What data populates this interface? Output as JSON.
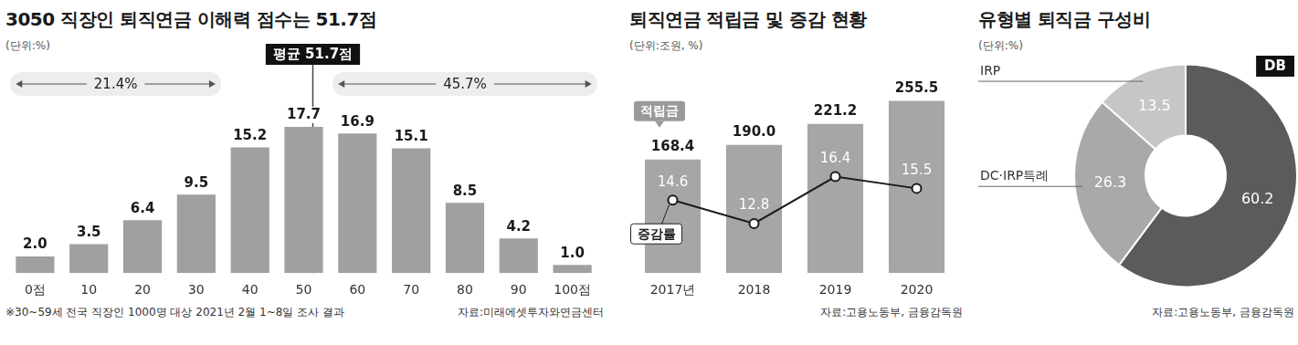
{
  "chart_data": [
    {
      "type": "bar",
      "title": "3050 직장인 퇴직연금 이해력 점수는 51.7점",
      "subtitle": "(단위:%)",
      "categories": [
        "0점",
        "10",
        "20",
        "30",
        "40",
        "50",
        "60",
        "70",
        "80",
        "90",
        "100점"
      ],
      "values": [
        2.0,
        3.5,
        6.4,
        9.5,
        15.2,
        17.7,
        16.9,
        15.1,
        8.5,
        4.2,
        1.0
      ],
      "value_labels": [
        "2.0",
        "3.5",
        "6.4",
        "9.5",
        "15.2",
        "17.7",
        "16.9",
        "15.1",
        "8.5",
        "4.2",
        "1.0"
      ],
      "color": "#a0a0a0",
      "ylim": [
        0,
        21
      ],
      "grid": false,
      "tick_labels": "x",
      "data_labels": true,
      "annotations": [
        {
          "text": "21.4%",
          "from": "0점",
          "to": "30"
        },
        {
          "text": "45.7%",
          "from": "60",
          "to": "100점"
        },
        {
          "text": "평균 51.7점",
          "x": 51.7
        }
      ],
      "footnote": "※30~59세 전국 직장인 1000명 대상 2021년 2월 1~8일 조사 결과",
      "source": "자료:미래에셋투자와연금센터"
    },
    {
      "type": "bar",
      "title": "퇴직연금 적립금 및 증감 현황",
      "subtitle": "(단위:조원, %)",
      "categories": [
        "2017년",
        "2018",
        "2019",
        "2020"
      ],
      "series": [
        {
          "name": "적립금",
          "type": "bar",
          "color": "#a6a6a6",
          "values": [
            168.4,
            190.0,
            221.2,
            255.5
          ],
          "value_labels": [
            "168.4",
            "190.0",
            "221.2",
            "255.5"
          ]
        },
        {
          "name": "증감률",
          "type": "line",
          "axis": "y2",
          "color": "#1a1a1a",
          "marker": "circle",
          "values": [
            14.6,
            12.8,
            16.4,
            15.5
          ]
        }
      ],
      "ylim": [
        0,
        290
      ],
      "y2lim": [
        9,
        24
      ],
      "grid": false,
      "tick_labels": "x",
      "data_labels": true,
      "source": "자료:고용노동부, 금융감독원"
    },
    {
      "type": "doughnut",
      "title": "유형별 퇴직금 구성비",
      "subtitle": "(단위:%)",
      "categories": [
        "DB",
        "DC·IRP특례",
        "IRP"
      ],
      "values": [
        60.2,
        26.3,
        13.5
      ],
      "colors": [
        "#5b5b5b",
        "#a9a9a9",
        "#c6c6c6"
      ],
      "data_labels": true,
      "source": "자료:고용노동부, 금융감독원"
    }
  ]
}
